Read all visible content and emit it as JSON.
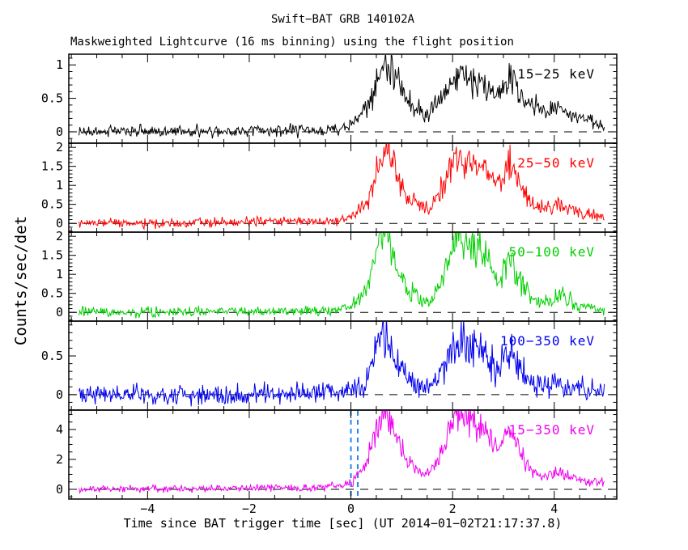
{
  "chart_data": {
    "type": "line",
    "title": "Swift−BAT GRB 140102A",
    "subtitle": "Maskweighted Lightcurve (16 ms binning) using the flight position",
    "xlabel": "Time since BAT trigger time [sec] (UT 2014−01−02T21:17:37.8)",
    "ylabel": "Counts/sec/det",
    "background": "#FFFFFF",
    "frame_color": "#000000",
    "grid": false,
    "x_range": [
      -5.55,
      5.23
    ],
    "data_t_range": [
      -5.35,
      5.0
    ],
    "bin_sec": 0.016,
    "x_major_ticks": [
      -4,
      -2,
      0,
      2,
      4
    ],
    "x_tick_labels": [
      "−4",
      "−2",
      "0",
      "2",
      "4"
    ],
    "x_minor_step": 0.5,
    "zero_line": {
      "y": 0,
      "style": "dashed",
      "color": "#000000"
    },
    "trigger_lines": {
      "x": [
        0.0,
        0.135
      ],
      "panel_index": 4,
      "style": "dashed",
      "color": "#2288EE"
    },
    "keypoint_t": [
      -5.5,
      -3.0,
      -1.0,
      -0.5,
      -0.2,
      0.0,
      0.15,
      0.3,
      0.45,
      0.55,
      0.65,
      0.75,
      0.85,
      0.95,
      1.1,
      1.3,
      1.45,
      1.55,
      1.7,
      1.85,
      1.95,
      2.05,
      2.15,
      2.25,
      2.35,
      2.45,
      2.55,
      2.65,
      2.75,
      2.85,
      2.95,
      3.05,
      3.15,
      3.25,
      3.35,
      3.5,
      3.65,
      3.8,
      3.95,
      4.1,
      4.25,
      4.45,
      4.65,
      4.85,
      5.0
    ],
    "panels": [
      {
        "name": "15−25 keV",
        "color": "#000000",
        "ylim": [
          -0.17,
          1.16
        ],
        "ytick_values": [
          0,
          0.5,
          1
        ],
        "ytick_labels": [
          "0",
          "0.5",
          "1"
        ],
        "y_minor_step": 0.1,
        "noise_sigma": 0.045,
        "noise_rel": 0.09,
        "values": [
          0.0,
          0.01,
          0.02,
          0.03,
          0.06,
          0.12,
          0.2,
          0.35,
          0.6,
          0.85,
          1.0,
          1.03,
          0.9,
          0.7,
          0.5,
          0.38,
          0.25,
          0.28,
          0.45,
          0.6,
          0.72,
          0.8,
          0.92,
          0.85,
          0.78,
          0.72,
          0.75,
          0.68,
          0.6,
          0.55,
          0.6,
          0.75,
          0.85,
          0.7,
          0.55,
          0.42,
          0.35,
          0.3,
          0.32,
          0.38,
          0.3,
          0.22,
          0.18,
          0.12,
          0.1
        ]
      },
      {
        "name": "25−50 keV",
        "color": "#FF0000",
        "ylim": [
          -0.23,
          2.11
        ],
        "ytick_values": [
          0,
          0.5,
          1,
          1.5,
          2
        ],
        "ytick_labels": [
          "0",
          "0.5",
          "1",
          "1.5",
          "2"
        ],
        "y_minor_step": 0.1,
        "noise_sigma": 0.06,
        "noise_rel": 0.1,
        "values": [
          0.0,
          0.02,
          0.05,
          0.06,
          0.08,
          0.15,
          0.3,
          0.55,
          1.0,
          1.6,
          2.0,
          1.9,
          1.55,
          1.15,
          0.75,
          0.5,
          0.35,
          0.4,
          0.7,
          1.1,
          1.45,
          1.7,
          1.75,
          1.7,
          1.6,
          1.5,
          1.45,
          1.35,
          1.15,
          1.0,
          1.1,
          1.45,
          1.65,
          1.35,
          1.0,
          0.6,
          0.45,
          0.4,
          0.45,
          0.5,
          0.4,
          0.3,
          0.25,
          0.2,
          0.18
        ]
      },
      {
        "name": "50−100 keV",
        "color": "#00D000",
        "ylim": [
          -0.23,
          2.11
        ],
        "ytick_values": [
          0,
          0.5,
          1,
          1.5,
          2
        ],
        "ytick_labels": [
          "0",
          "0.5",
          "1",
          "1.5",
          "2"
        ],
        "y_minor_step": 0.1,
        "noise_sigma": 0.06,
        "noise_rel": 0.12,
        "values": [
          0.0,
          0.02,
          0.04,
          0.05,
          0.08,
          0.15,
          0.3,
          0.6,
          1.2,
          1.8,
          2.1,
          1.95,
          1.5,
          1.05,
          0.65,
          0.4,
          0.25,
          0.3,
          0.6,
          1.0,
          1.5,
          1.8,
          1.9,
          1.75,
          1.7,
          1.75,
          1.6,
          1.5,
          1.2,
          0.85,
          0.9,
          1.3,
          1.5,
          1.2,
          0.8,
          0.45,
          0.3,
          0.25,
          0.3,
          0.5,
          0.35,
          0.2,
          0.15,
          0.12,
          0.1
        ]
      },
      {
        "name": "100−350 keV",
        "color": "#0000EE",
        "ylim": [
          -0.2,
          0.95
        ],
        "ytick_values": [
          0,
          0.5
        ],
        "ytick_labels": [
          "0",
          "0.5"
        ],
        "y_minor_step": 0.1,
        "noise_sigma": 0.065,
        "noise_rel": 0.12,
        "values": [
          0.0,
          0.0,
          0.01,
          0.02,
          0.03,
          0.05,
          0.1,
          0.2,
          0.45,
          0.65,
          0.75,
          0.65,
          0.5,
          0.35,
          0.2,
          0.12,
          0.08,
          0.1,
          0.2,
          0.35,
          0.55,
          0.7,
          0.75,
          0.65,
          0.6,
          0.6,
          0.55,
          0.5,
          0.4,
          0.3,
          0.35,
          0.5,
          0.55,
          0.45,
          0.3,
          0.18,
          0.12,
          0.1,
          0.12,
          0.15,
          0.1,
          0.08,
          0.06,
          0.04,
          0.03
        ]
      },
      {
        "name": "15−350 keV",
        "color": "#F000F0",
        "ylim": [
          -0.65,
          5.3
        ],
        "ytick_values": [
          0,
          2,
          4
        ],
        "ytick_labels": [
          "0",
          "2",
          "4"
        ],
        "y_minor_step": 0.5,
        "noise_sigma": 0.11,
        "noise_rel": 0.1,
        "values": [
          0.0,
          0.05,
          0.1,
          0.15,
          0.25,
          0.45,
          0.9,
          1.7,
          3.2,
          4.6,
          5.15,
          5.0,
          4.2,
          3.2,
          2.1,
          1.4,
          1.0,
          1.1,
          1.9,
          3.0,
          4.1,
          4.8,
          5.0,
          4.7,
          4.4,
          4.3,
          4.1,
          3.8,
          3.2,
          2.7,
          2.9,
          3.6,
          3.9,
          3.3,
          2.4,
          1.5,
          1.1,
          0.95,
          1.05,
          1.25,
          0.95,
          0.7,
          0.55,
          0.45,
          0.4
        ]
      }
    ]
  }
}
